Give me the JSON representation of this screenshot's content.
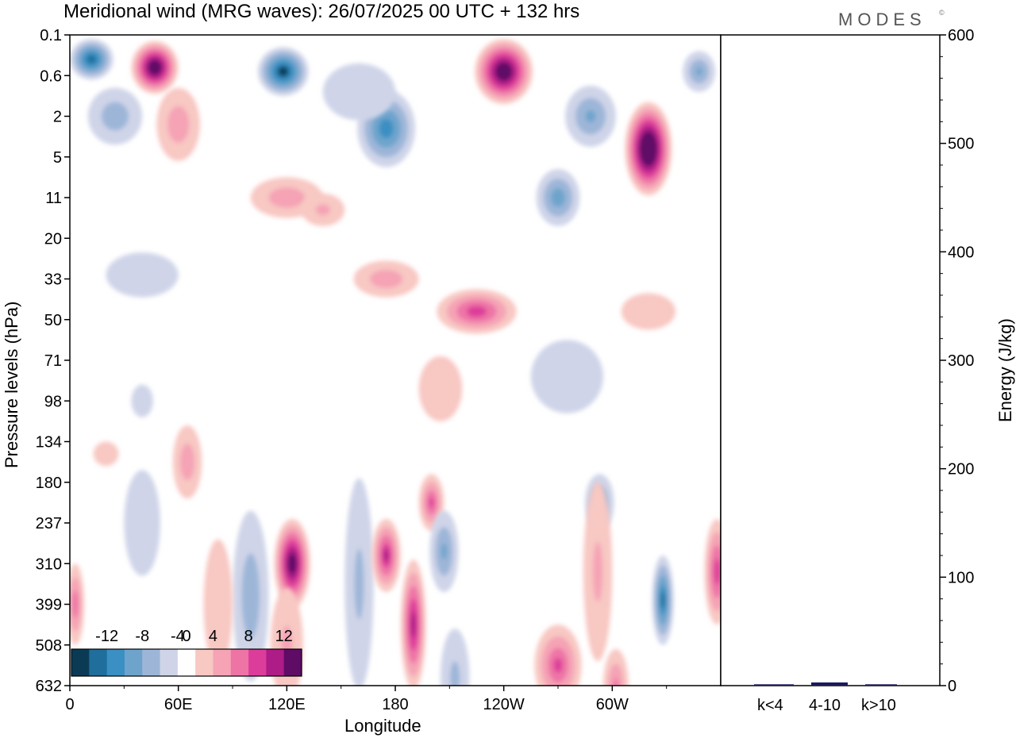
{
  "chart_data": {
    "type": "heatmap",
    "title": "Meridional wind (MRG waves):  26/07/2025  00 UTC  + 132 hrs",
    "logo": "MODES",
    "logo_mark": "©",
    "xlabel": "Longitude",
    "ylabel": "Pressure levels (hPa)",
    "x_ticks": [
      "0",
      "60E",
      "120E",
      "180",
      "120W",
      "60W"
    ],
    "x_tick_degrees": [
      0,
      60,
      120,
      180,
      240,
      300
    ],
    "x_range_degrees": [
      0,
      360
    ],
    "y_ticks": [
      "0.1",
      "0.6",
      "2",
      "5",
      "11",
      "20",
      "33",
      "50",
      "71",
      "98",
      "134",
      "180",
      "237",
      "310",
      "399",
      "508",
      "632"
    ],
    "colorbar": {
      "labels": [
        "-12",
        "-8",
        "-4",
        "0",
        "4",
        "8",
        "12"
      ],
      "levels": [
        -14,
        -12,
        -10,
        -8,
        -6,
        -4,
        -2,
        2,
        4,
        6,
        8,
        10,
        12,
        14
      ],
      "colors": [
        "#0b3a55",
        "#1f6e9c",
        "#3a8fc3",
        "#6ea4cc",
        "#9db6d8",
        "#cfd4e8",
        "#ffffff",
        "#f8c8c3",
        "#f5a3b5",
        "#ee74a6",
        "#dd3d9a",
        "#ae1c87",
        "#5e0c66"
      ]
    },
    "blobs": [
      {
        "lon": 12,
        "lev": 0.6,
        "w": 12,
        "h": 0.5,
        "value": -11
      },
      {
        "lon": 47,
        "lev": 0.8,
        "w": 13,
        "h": 0.65,
        "value": 15
      },
      {
        "lon": 60,
        "lev": 2.2,
        "w": 12,
        "h": 0.9,
        "value": 5
      },
      {
        "lon": 25,
        "lev": 2.0,
        "w": 15,
        "h": 0.7,
        "value": -5
      },
      {
        "lon": 118,
        "lev": 0.9,
        "w": 14,
        "h": 0.6,
        "value": -12
      },
      {
        "lon": 175,
        "lev": 2.3,
        "w": 16,
        "h": 0.95,
        "value": -9
      },
      {
        "lon": 160,
        "lev": 1.4,
        "w": 20,
        "h": 0.7,
        "value": -3
      },
      {
        "lon": 120,
        "lev": 4.0,
        "w": 20,
        "h": 0.5,
        "value": 5
      },
      {
        "lon": 240,
        "lev": 0.9,
        "w": 16,
        "h": 0.8,
        "value": 15
      },
      {
        "lon": 288,
        "lev": 2.0,
        "w": 14,
        "h": 0.75,
        "value": -6
      },
      {
        "lon": 270,
        "lev": 4.0,
        "w": 12,
        "h": 0.7,
        "value": -7
      },
      {
        "lon": 320,
        "lev": 2.8,
        "w": 13,
        "h": 1.15,
        "value": 17
      },
      {
        "lon": 348,
        "lev": 0.9,
        "w": 9,
        "h": 0.5,
        "value": -6
      },
      {
        "lon": 225,
        "lev": 6.8,
        "w": 22,
        "h": 0.55,
        "value": 9
      },
      {
        "lon": 175,
        "lev": 6.0,
        "w": 18,
        "h": 0.45,
        "value": 5
      },
      {
        "lon": 140,
        "lev": 4.3,
        "w": 12,
        "h": 0.4,
        "value": 4
      },
      {
        "lon": 40,
        "lev": 5.9,
        "w": 20,
        "h": 0.55,
        "value": -2
      },
      {
        "lon": 320,
        "lev": 6.8,
        "w": 15,
        "h": 0.45,
        "value": 3
      },
      {
        "lon": 205,
        "lev": 8.7,
        "w": 12,
        "h": 0.8,
        "value": 3
      },
      {
        "lon": 275,
        "lev": 8.4,
        "w": 20,
        "h": 0.9,
        "value": -3
      },
      {
        "lon": 40,
        "lev": 9.0,
        "w": 6,
        "h": 0.4,
        "value": -2
      },
      {
        "lon": 20,
        "lev": 10.3,
        "w": 7,
        "h": 0.3,
        "value": 2
      },
      {
        "lon": 200,
        "lev": 11.5,
        "w": 7,
        "h": 0.7,
        "value": 8
      },
      {
        "lon": 293,
        "lev": 11.5,
        "w": 8,
        "h": 0.7,
        "value": -6
      },
      {
        "lon": 123,
        "lev": 13.0,
        "w": 10,
        "h": 1.1,
        "value": 14
      },
      {
        "lon": 120,
        "lev": 15.0,
        "w": 9,
        "h": 1.4,
        "value": 4
      },
      {
        "lon": 160,
        "lev": 13.5,
        "w": 8,
        "h": 2.6,
        "value": -4
      },
      {
        "lon": 175,
        "lev": 12.8,
        "w": 8,
        "h": 0.9,
        "value": 10
      },
      {
        "lon": 190,
        "lev": 14.5,
        "w": 7,
        "h": 1.6,
        "value": 11
      },
      {
        "lon": 207,
        "lev": 12.7,
        "w": 8,
        "h": 1.0,
        "value": -6
      },
      {
        "lon": 213,
        "lev": 15.8,
        "w": 8,
        "h": 1.2,
        "value": -4
      },
      {
        "lon": 100,
        "lev": 13.8,
        "w": 10,
        "h": 2.1,
        "value": -5
      },
      {
        "lon": 40,
        "lev": 12.0,
        "w": 10,
        "h": 1.3,
        "value": -3
      },
      {
        "lon": 65,
        "lev": 10.5,
        "w": 8,
        "h": 0.9,
        "value": 5
      },
      {
        "lon": 270,
        "lev": 15.5,
        "w": 13,
        "h": 1.0,
        "value": 8
      },
      {
        "lon": 292,
        "lev": 13.2,
        "w": 8,
        "h": 2.2,
        "value": 4
      },
      {
        "lon": 328,
        "lev": 13.9,
        "w": 6,
        "h": 1.1,
        "value": -10
      },
      {
        "lon": 358,
        "lev": 13.2,
        "w": 7,
        "h": 1.3,
        "value": 9
      },
      {
        "lon": 3,
        "lev": 14.0,
        "w": 5,
        "h": 1.0,
        "value": 7
      },
      {
        "lon": 82,
        "lev": 14.0,
        "w": 8,
        "h": 1.6,
        "value": 3
      },
      {
        "lon": 302,
        "lev": 16.0,
        "w": 7,
        "h": 0.9,
        "value": 6
      }
    ]
  }
}
